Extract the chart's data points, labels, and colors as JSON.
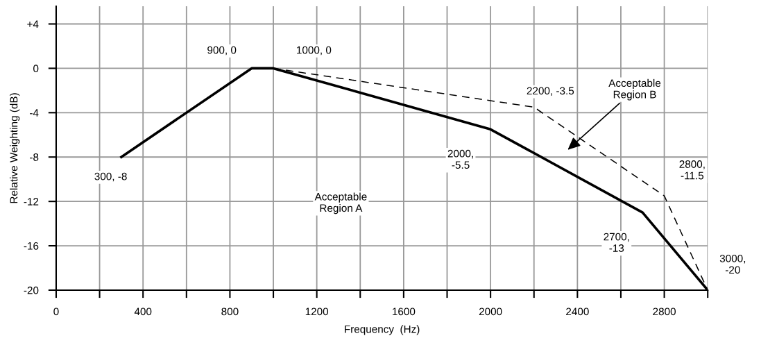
{
  "chart_data": {
    "type": "line",
    "xlabel": "Frequency  (Hz)",
    "ylabel": "Relative Weighting (dB)",
    "xlim": [
      0,
      3000
    ],
    "ylim": [
      -20,
      5.6
    ],
    "xticks": [
      0,
      {
        "value": 200,
        "label": null
      },
      400,
      {
        "value": 600,
        "label": null
      },
      800,
      {
        "value": 1000,
        "label": null
      },
      1200,
      {
        "value": 1400,
        "label": null
      },
      1600,
      {
        "value": 1800,
        "label": null
      },
      2000,
      {
        "value": 2200,
        "label": null
      },
      2400,
      {
        "value": 2600,
        "label": null
      },
      2800,
      {
        "value": 3000,
        "label": null
      }
    ],
    "yticks": [
      -20,
      -16,
      -12,
      -8,
      -4,
      0,
      {
        "value": 4,
        "label": "+4"
      }
    ],
    "grid": true,
    "legend": false,
    "marker": "none",
    "series": [
      {
        "color": "#000000",
        "line_style": "solid",
        "x": [
          300,
          900,
          1000,
          2000,
          2700,
          3000
        ],
        "values": [
          -8,
          0,
          0,
          -5.5,
          -13,
          -20
        ]
      },
      {
        "color": "#000000",
        "line_style": "dashed",
        "x": [
          1000,
          2200,
          2800,
          3000
        ],
        "values": [
          0,
          -3.5,
          -11.5,
          -20
        ]
      }
    ],
    "annotations": [
      {
        "text": "300, -8",
        "x": 300,
        "y": -8
      },
      {
        "text": "900, 0",
        "x": 900,
        "y": 0
      },
      {
        "text": "1000, 0",
        "x": 1000,
        "y": 0
      },
      {
        "text": "2200, -3.5",
        "x": 2200,
        "y": -3.5
      },
      "Acceptable\nRegion B",
      {
        "text": "2000,\n-5.5",
        "x": 2000,
        "y": -5.5
      },
      {
        "text": "2800,\n-11.5",
        "x": 2800,
        "y": -11.5
      },
      "Acceptable\nRegion A",
      {
        "text": "2700,\n-13",
        "x": 2700,
        "y": -13
      },
      {
        "text": "3000,\n-20",
        "x": 3000,
        "y": -20
      }
    ]
  }
}
